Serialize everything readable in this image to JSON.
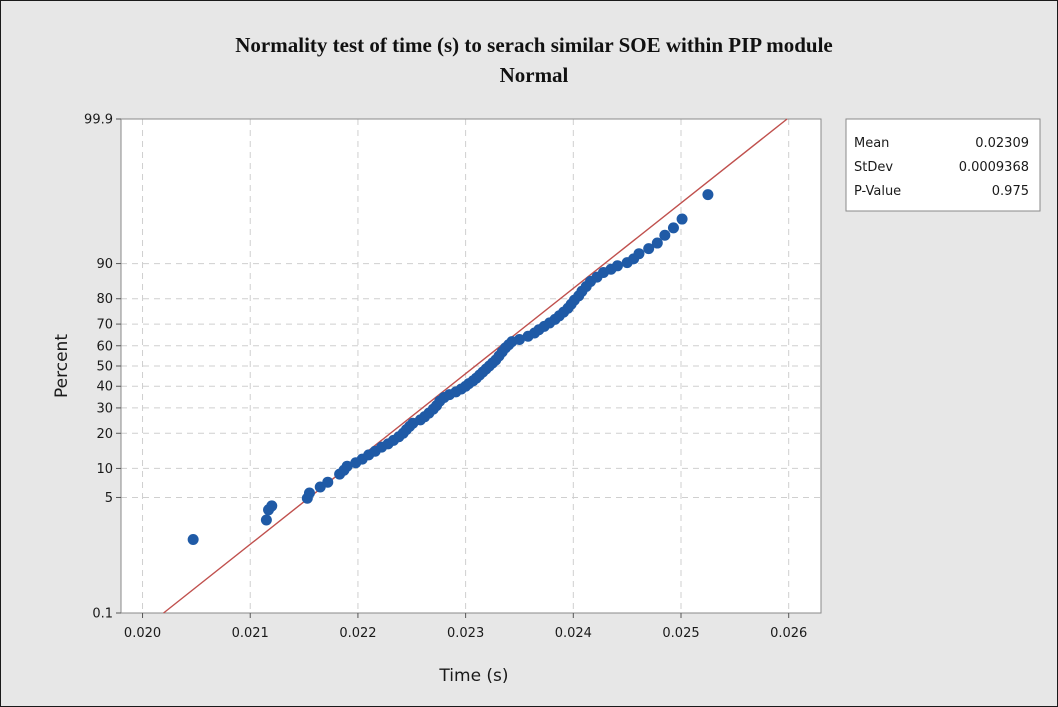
{
  "chart_data": {
    "type": "scatter",
    "title": "Normality test of time (s) to serach similar SOE within PIP module",
    "subtitle": "Normal",
    "xlabel": "Time (s)",
    "ylabel": "Percent",
    "xlim": [
      0.0198,
      0.0263
    ],
    "x_ticks": [
      0.02,
      0.021,
      0.022,
      0.023,
      0.024,
      0.025,
      0.026
    ],
    "x_tick_labels": [
      "0.020",
      "0.021",
      "0.022",
      "0.023",
      "0.024",
      "0.025",
      "0.026"
    ],
    "y_scale": "normal-probability",
    "ylim": [
      0.1,
      99.9
    ],
    "y_ticks": [
      0.1,
      5,
      10,
      20,
      30,
      40,
      50,
      60,
      70,
      80,
      90,
      99.9
    ],
    "y_tick_labels": [
      "0.1",
      "5",
      "10",
      "20",
      "30",
      "40",
      "50",
      "60",
      "70",
      "80",
      "90",
      "99.9"
    ],
    "grid": true,
    "legend_placement": "top-right",
    "marker_color": "#1f5aa6",
    "fit_line_color": "#c0504d",
    "fit_line": {
      "mean": 0.02309,
      "stdev": 0.0009368
    },
    "stats": [
      {
        "label": "Mean",
        "value": "0.02309"
      },
      {
        "label": "StDev",
        "value": "0.0009368"
      },
      {
        "label": "P-Value",
        "value": "0.975"
      }
    ],
    "points": [
      [
        0.02047,
        1.5
      ],
      [
        0.02115,
        2.7
      ],
      [
        0.02117,
        3.6
      ],
      [
        0.0212,
        4.0
      ],
      [
        0.02153,
        4.9
      ],
      [
        0.02155,
        5.6
      ],
      [
        0.02165,
        6.5
      ],
      [
        0.02172,
        7.3
      ],
      [
        0.02183,
        8.8
      ],
      [
        0.02187,
        9.6
      ],
      [
        0.0219,
        10.5
      ],
      [
        0.02198,
        11.3
      ],
      [
        0.02204,
        12.2
      ],
      [
        0.0221,
        13.3
      ],
      [
        0.02216,
        14.3
      ],
      [
        0.02222,
        15.5
      ],
      [
        0.02228,
        16.5
      ],
      [
        0.02233,
        17.6
      ],
      [
        0.02238,
        18.8
      ],
      [
        0.02242,
        20.0
      ],
      [
        0.02245,
        21.3
      ],
      [
        0.02248,
        22.5
      ],
      [
        0.02251,
        23.7
      ],
      [
        0.02258,
        25.0
      ],
      [
        0.02262,
        26.3
      ],
      [
        0.02266,
        27.8
      ],
      [
        0.0227,
        29.5
      ],
      [
        0.02273,
        31.0
      ],
      [
        0.02276,
        33.0
      ],
      [
        0.0228,
        34.7
      ],
      [
        0.02285,
        36.0
      ],
      [
        0.02291,
        37.3
      ],
      [
        0.02296,
        38.7
      ],
      [
        0.023,
        40.0
      ],
      [
        0.02303,
        41.3
      ],
      [
        0.02307,
        42.7
      ],
      [
        0.0231,
        44.0
      ],
      [
        0.02313,
        45.5
      ],
      [
        0.02316,
        47.0
      ],
      [
        0.02319,
        48.5
      ],
      [
        0.02322,
        50.0
      ],
      [
        0.02325,
        51.5
      ],
      [
        0.02328,
        53.0
      ],
      [
        0.02331,
        55.0
      ],
      [
        0.02334,
        57.0
      ],
      [
        0.02337,
        59.0
      ],
      [
        0.0234,
        60.5
      ],
      [
        0.02343,
        62.0
      ],
      [
        0.0235,
        63.0
      ],
      [
        0.02358,
        64.5
      ],
      [
        0.02364,
        66.0
      ],
      [
        0.02368,
        67.5
      ],
      [
        0.02373,
        69.0
      ],
      [
        0.02378,
        70.5
      ],
      [
        0.02383,
        72.0
      ],
      [
        0.02387,
        73.5
      ],
      [
        0.02391,
        75.0
      ],
      [
        0.02395,
        76.5
      ],
      [
        0.02398,
        78.0
      ],
      [
        0.02401,
        79.5
      ],
      [
        0.02405,
        81.0
      ],
      [
        0.02408,
        82.5
      ],
      [
        0.02412,
        84.0
      ],
      [
        0.02416,
        85.5
      ],
      [
        0.02422,
        86.7
      ],
      [
        0.02428,
        87.9
      ],
      [
        0.02435,
        88.7
      ],
      [
        0.02441,
        89.5
      ],
      [
        0.0245,
        90.2
      ],
      [
        0.02456,
        91.0
      ],
      [
        0.02461,
        92.0
      ],
      [
        0.0247,
        92.9
      ],
      [
        0.02478,
        93.8
      ],
      [
        0.02485,
        94.9
      ],
      [
        0.02493,
        95.8
      ],
      [
        0.02501,
        96.7
      ],
      [
        0.02525,
        98.4
      ]
    ]
  }
}
